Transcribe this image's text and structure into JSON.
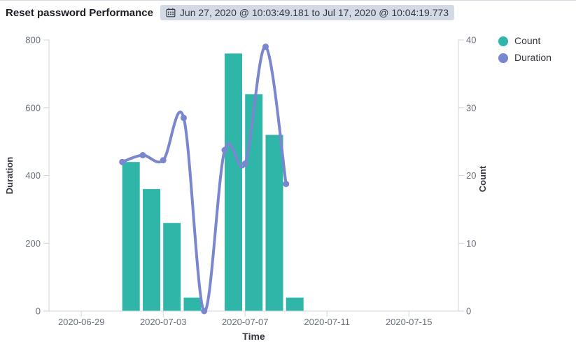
{
  "header": {
    "title": "Reset password Performance",
    "time_range": "Jun 27, 2020 @ 10:03:49.181 to Jul 17, 2020 @ 10:04:19.773"
  },
  "legend": {
    "items": [
      {
        "label": "Count",
        "color": "#2fb6a9"
      },
      {
        "label": "Duration",
        "color": "#7a87cf"
      }
    ]
  },
  "chart_data": {
    "type": "bar",
    "subtype": "dual-axis timeseries: daily bars (Count, right axis) + smoothed line (Duration, left axis)",
    "title": "Reset password Performance",
    "time_domain": {
      "start": "2020-06-27T10:03:49.181",
      "end": "2020-07-17T10:04:19.773"
    },
    "x_axis": {
      "label": "Time",
      "ticks": [
        "2020-06-29",
        "2020-07-03",
        "2020-07-07",
        "2020-07-11",
        "2020-07-15"
      ]
    },
    "left_axis": {
      "label": "Duration",
      "ticks": [
        0,
        200,
        400,
        600,
        800
      ],
      "range": [
        0,
        800
      ]
    },
    "right_axis": {
      "label": "Count",
      "ticks": [
        0,
        10,
        20,
        30,
        40
      ],
      "range": [
        0,
        40
      ]
    },
    "grid": "off",
    "legend_position": "top-right",
    "series": [
      {
        "name": "Count",
        "type": "bar",
        "axis": "right",
        "color": "#2fb6a9",
        "points": [
          [
            "2020-07-01",
            22
          ],
          [
            "2020-07-02",
            18
          ],
          [
            "2020-07-03",
            13
          ],
          [
            "2020-07-04",
            2
          ],
          [
            "2020-07-06",
            38
          ],
          [
            "2020-07-07",
            32
          ],
          [
            "2020-07-08",
            26
          ],
          [
            "2020-07-09",
            2
          ]
        ]
      },
      {
        "name": "Duration",
        "type": "line",
        "axis": "left",
        "color": "#7a87cf",
        "points": [
          [
            "2020-07-01",
            440
          ],
          [
            "2020-07-02",
            460
          ],
          [
            "2020-07-03",
            445
          ],
          [
            "2020-07-04",
            570
          ],
          [
            "2020-07-05",
            0
          ],
          [
            "2020-07-06",
            475
          ],
          [
            "2020-07-07",
            435
          ],
          [
            "2020-07-08",
            780
          ],
          [
            "2020-07-09",
            375
          ]
        ]
      }
    ]
  },
  "colors": {
    "badge_bg": "#d3dae6",
    "axis_line": "#d0d6e0",
    "tick_text": "#69707d",
    "axis_title_text": "#343741",
    "title_text": "#1a1c21"
  }
}
